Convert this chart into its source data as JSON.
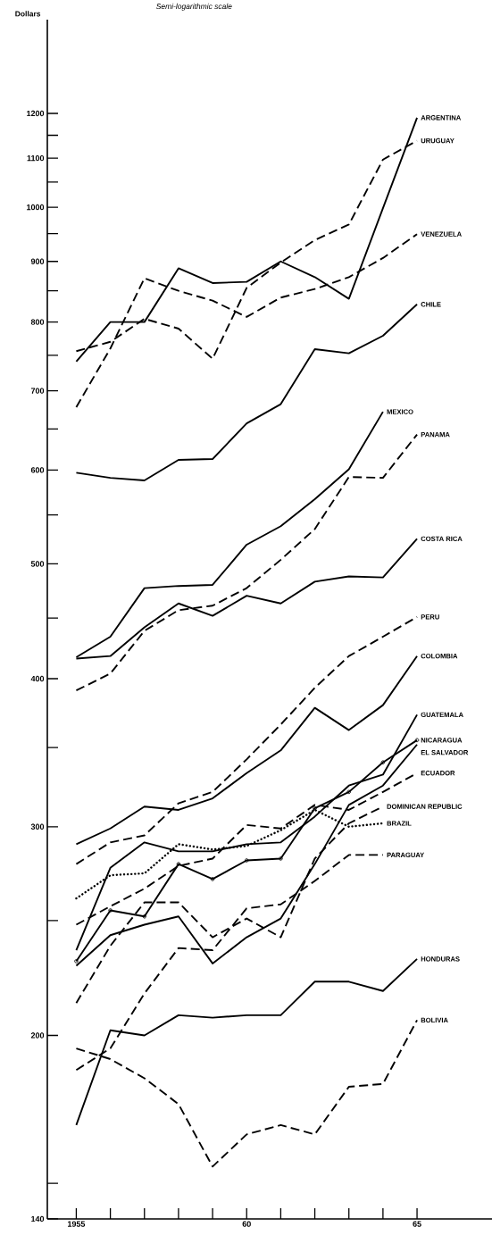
{
  "chart_data": {
    "type": "line",
    "title": "Semi-logarithmic scale",
    "ylabel": "Dollars",
    "log": "y",
    "x": [
      1955,
      1956,
      1957,
      1958,
      1959,
      1960,
      1961,
      1962,
      1963,
      1964,
      1965
    ],
    "xlim": [
      1954.15,
      1967.2
    ],
    "xticks": [
      1955,
      {
        "value": 1956,
        "label": null
      },
      {
        "value": 1957,
        "label": null
      },
      {
        "value": 1958,
        "label": null
      },
      {
        "value": 1959,
        "label": null
      },
      {
        "value": 1960,
        "label": "60"
      },
      {
        "value": 1961,
        "label": null
      },
      {
        "value": 1962,
        "label": null
      },
      {
        "value": 1963,
        "label": null
      },
      {
        "value": 1964,
        "label": null
      },
      {
        "value": 1965,
        "label": "65"
      }
    ],
    "ylim": [
      140,
      1440
    ],
    "yticks": [
      140,
      {
        "value": 150,
        "label": null
      },
      200,
      {
        "value": 250,
        "label": null
      },
      300,
      {
        "value": 350,
        "label": null
      },
      400,
      {
        "value": 450,
        "label": null
      },
      500,
      {
        "value": 550,
        "label": null
      },
      600,
      {
        "value": 650,
        "label": null
      },
      700,
      {
        "value": 750,
        "label": null
      },
      800,
      {
        "value": 850,
        "label": null
      },
      900,
      {
        "value": 950,
        "label": null
      },
      1000,
      {
        "value": 1050,
        "label": null
      },
      1100,
      {
        "value": 1150,
        "label": null
      },
      1200
    ],
    "series": [
      {
        "name": "ARGENTINA",
        "color": "#000000",
        "line_style": "solid",
        "values": [
          741,
          800,
          800,
          888,
          863,
          865,
          900,
          873,
          837,
          998,
          1190
        ]
      },
      {
        "name": "URUGUAY",
        "color": "#000000",
        "line_style": "dashed",
        "values": [
          756,
          770,
          805,
          790,
          745,
          855,
          898,
          938,
          967,
          1097,
          1138
        ]
      },
      {
        "name": "VENEZUELA",
        "color": "#000000",
        "line_style": "dashed",
        "values": [
          678,
          760,
          871,
          850,
          834,
          808,
          839,
          853,
          873,
          906,
          949
        ]
      },
      {
        "name": "CHILE",
        "color": "#000000",
        "line_style": "solid",
        "values": [
          597,
          591,
          588,
          612,
          613,
          657,
          682,
          759,
          753,
          779,
          828
        ]
      },
      {
        "name": "MEXICO",
        "color": "#000000",
        "line_style": "solid",
        "values": [
          417,
          434,
          477,
          479,
          480,
          519,
          538,
          567,
          601,
          672,
          null
        ]
      },
      {
        "name": "PANAMA",
        "color": "#000000",
        "line_style": "dashed",
        "values": [
          391,
          404,
          439,
          457,
          461,
          477,
          504,
          535,
          592,
          591,
          643
        ]
      },
      {
        "name": "COSTA RICA",
        "color": "#000000",
        "line_style": "solid",
        "values": [
          416,
          418,
          442,
          463,
          452,
          470,
          463,
          483,
          488,
          487,
          525
        ]
      },
      {
        "name": "PERU",
        "color": "#000000",
        "line_style": "dashed",
        "values": [
          279,
          291,
          295,
          314,
          321,
          342,
          366,
          393,
          418,
          434,
          451
        ]
      },
      {
        "name": "COLOMBIA",
        "color": "#000000",
        "line_style": "solid",
        "values": [
          290,
          299,
          312,
          310,
          317,
          333,
          348,
          378,
          362,
          380,
          418
        ]
      },
      {
        "name": "GUATEMALA",
        "color": "#000000",
        "line_style": "solid",
        "values": [
          236,
          277,
          291,
          286,
          286,
          290,
          291,
          306,
          325,
          332,
          373
        ]
      },
      {
        "name": "EL SALVADOR",
        "color": "#000000",
        "line_style": "solid",
        "values": [
          229,
          243,
          248,
          252,
          230,
          242,
          251,
          279,
          313,
          325,
          352
        ]
      },
      {
        "name": "NICARAGUA",
        "color": "#000000",
        "line_style": "solid",
        "marker": "circle",
        "values": [
          231,
          255,
          252,
          279,
          271,
          281,
          282,
          311,
          321,
          340,
          355
        ]
      },
      {
        "name": "ECUADOR",
        "color": "#000000",
        "line_style": "dashed",
        "values": [
          248,
          257,
          266,
          278,
          282,
          301,
          299,
          313,
          310,
          321,
          333
        ]
      },
      {
        "name": "DOMINICAN REPUBLIC",
        "color": "#000000",
        "line_style": "dashed",
        "values": [
          213,
          238,
          259,
          259,
          242,
          251,
          242,
          282,
          302,
          312,
          null
        ]
      },
      {
        "name": "BRAZIL",
        "color": "#000000",
        "line_style": "dotted",
        "values": [
          261,
          273,
          274,
          290,
          287,
          289,
          298,
          310,
          300,
          302,
          null
        ]
      },
      {
        "name": "PARAGUAY",
        "color": "#000000",
        "line_style": "dashed",
        "values": [
          187,
          195,
          217,
          237,
          236,
          256,
          258,
          270,
          284,
          284,
          null
        ]
      },
      {
        "name": "HONDURAS",
        "color": "#000000",
        "line_style": "solid",
        "values": [
          168,
          202,
          200,
          208,
          207,
          208,
          208,
          222,
          222,
          218,
          232
        ]
      },
      {
        "name": "BOLIVIA",
        "color": "#000000",
        "line_style": "dashed",
        "values": [
          195,
          191,
          184,
          175,
          155,
          165,
          168,
          165,
          181,
          182,
          206
        ]
      }
    ]
  }
}
